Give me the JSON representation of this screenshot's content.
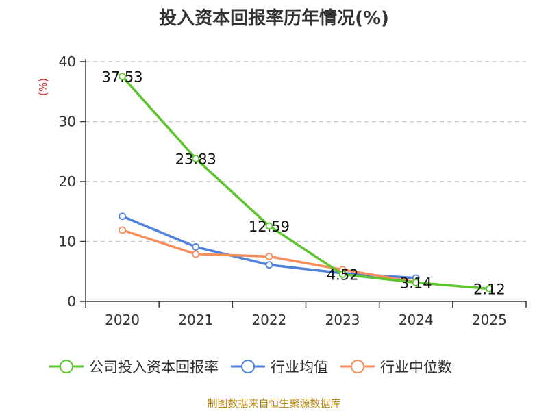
{
  "chart_data": {
    "type": "line",
    "title": "投入资本回报率历年情况(%)",
    "ylabel": "(%)",
    "xlabel": "",
    "ylim": [
      0,
      40
    ],
    "yticks": [
      0,
      10,
      20,
      30,
      40
    ],
    "categories": [
      "2020",
      "2021",
      "2022",
      "2023",
      "2024",
      "2025"
    ],
    "grid": "horizontal dashed",
    "series": [
      {
        "name": "公司投入资本回报率",
        "color": "#5cc42c",
        "values": [
          37.53,
          23.83,
          12.59,
          4.52,
          3.14,
          2.12
        ],
        "labels": [
          "37.53",
          "23.83",
          "12.59",
          "4.52",
          "3.14",
          "2.12"
        ]
      },
      {
        "name": "行业均值",
        "color": "#5081dc",
        "values": [
          14.2,
          9.1,
          6.1,
          4.7,
          3.9,
          null
        ]
      },
      {
        "name": "行业中位数",
        "color": "#f68d5b",
        "values": [
          11.9,
          7.9,
          7.5,
          5.3,
          3.2,
          null
        ]
      }
    ],
    "legend_position": "bottom"
  },
  "source": "制图数据来自恒生聚源数据库"
}
